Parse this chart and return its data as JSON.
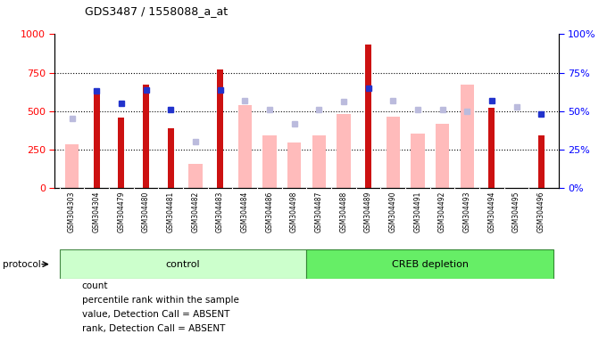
{
  "title": "GDS3487 / 1558088_a_at",
  "samples": [
    "GSM304303",
    "GSM304304",
    "GSM304479",
    "GSM304480",
    "GSM304481",
    "GSM304482",
    "GSM304483",
    "GSM304484",
    "GSM304486",
    "GSM304498",
    "GSM304487",
    "GSM304488",
    "GSM304489",
    "GSM304490",
    "GSM304491",
    "GSM304492",
    "GSM304493",
    "GSM304494",
    "GSM304495",
    "GSM304496"
  ],
  "count": [
    null,
    620,
    460,
    670,
    390,
    null,
    770,
    null,
    null,
    null,
    null,
    null,
    930,
    null,
    null,
    null,
    null,
    520,
    null,
    340
  ],
  "percentile_rank": [
    null,
    63,
    55,
    64,
    51,
    null,
    64,
    null,
    null,
    null,
    null,
    null,
    65,
    null,
    null,
    null,
    null,
    57,
    null,
    48
  ],
  "value_absent": [
    285,
    null,
    null,
    null,
    null,
    160,
    null,
    540,
    340,
    295,
    345,
    480,
    null,
    465,
    355,
    415,
    670,
    null,
    null,
    null
  ],
  "rank_absent": [
    45,
    null,
    null,
    null,
    null,
    30,
    null,
    57,
    51,
    42,
    51,
    56,
    null,
    57,
    51,
    51,
    50,
    null,
    53,
    null
  ],
  "control_count": 10,
  "creb_count": 10,
  "ylim_left": [
    0,
    1000
  ],
  "ylim_right": [
    0,
    100
  ],
  "color_count": "#cc1111",
  "color_percentile": "#2233cc",
  "color_value_absent": "#ffbbbb",
  "color_rank_absent": "#bbbbdd",
  "color_control_bg": "#ccffcc",
  "color_creb_bg": "#66ee66",
  "color_xtick_bg": "#cccccc",
  "legend_items": [
    "count",
    "percentile rank within the sample",
    "value, Detection Call = ABSENT",
    "rank, Detection Call = ABSENT"
  ]
}
